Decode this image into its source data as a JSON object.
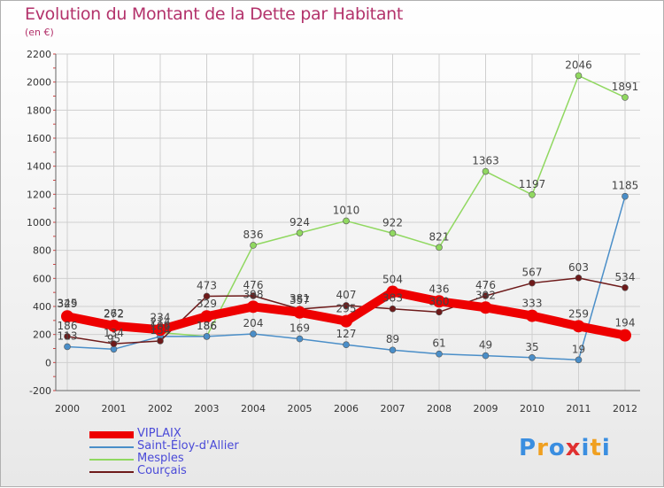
{
  "title": "Evolution du Montant de la Dette par Habitant",
  "unit": "(en €)",
  "logo": {
    "letters": [
      "P",
      "r",
      "o",
      "x",
      "i",
      "t",
      "i"
    ],
    "colors": [
      "#3a8ee0",
      "#f0a020",
      "#3a8ee0",
      "#e03030",
      "#3a8ee0",
      "#f0a020",
      "#3a8ee0"
    ]
  },
  "chart_data": {
    "type": "line",
    "x": [
      "2000",
      "2001",
      "2002",
      "2003",
      "2004",
      "2005",
      "2006",
      "2007",
      "2008",
      "2009",
      "2010",
      "2011",
      "2012"
    ],
    "ylim": [
      -200,
      2200
    ],
    "yticks": [
      -200,
      0,
      200,
      400,
      600,
      800,
      1000,
      1200,
      1400,
      1600,
      1800,
      2000,
      2200
    ],
    "grid": true,
    "legend_position": "bottom-left",
    "series": [
      {
        "name": "VIPLAIX",
        "color": "#ee0000",
        "values": [
          329,
          262,
          234,
          329,
          398,
          357,
          295,
          504,
          436,
          392,
          333,
          259,
          194
        ]
      },
      {
        "name": "Saint-Éloy-d'Allier",
        "color": "#4a8ec8",
        "values": [
          113,
          95,
          186,
          186,
          204,
          169,
          127,
          89,
          61,
          49,
          35,
          19,
          1185
        ]
      },
      {
        "name": "Mesples",
        "color": "#90d860",
        "values": [
          345,
          272,
          214,
          186,
          836,
          924,
          1010,
          922,
          821,
          1363,
          1197,
          2046,
          1891
        ]
      },
      {
        "name": "Courçais",
        "color": "#6e1a1a",
        "values": [
          186,
          134,
          154,
          473,
          476,
          381,
          407,
          383,
          360,
          476,
          567,
          603,
          534
        ]
      }
    ]
  }
}
